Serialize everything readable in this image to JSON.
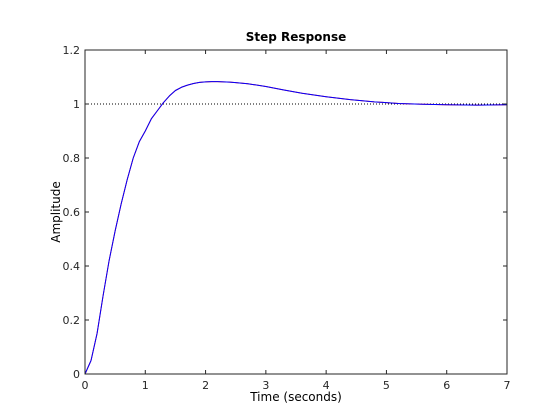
{
  "chart_data": {
    "type": "line",
    "title": "Step Response",
    "xlabel": "Time (seconds)",
    "ylabel": "Amplitude",
    "xlim": [
      0,
      7
    ],
    "ylim": [
      0,
      1.2
    ],
    "x_ticks": [
      0,
      1,
      2,
      3,
      4,
      5,
      6,
      7
    ],
    "x_tick_labels": [
      "0",
      "1",
      "2",
      "3",
      "4",
      "5",
      "6",
      "7"
    ],
    "y_ticks": [
      0,
      0.2,
      0.4,
      0.6,
      0.8,
      1,
      1.2
    ],
    "y_tick_labels": [
      "0",
      "0.2",
      "0.4",
      "0.6",
      "0.8",
      "1",
      "1.2"
    ],
    "grid": false,
    "legend": "none",
    "reference_line": {
      "y": 1,
      "style": "dotted",
      "color": "#000000"
    },
    "series": [
      {
        "color": "#ff0000",
        "x": [
          0,
          0.1,
          0.2,
          0.3,
          0.4,
          0.5,
          0.6,
          0.7,
          0.8,
          0.9,
          1.0,
          1.1,
          1.2,
          1.3,
          1.4,
          1.5,
          1.6,
          1.7,
          1.8,
          1.9,
          2.0,
          2.1,
          2.2,
          2.3,
          2.4,
          2.5,
          2.7,
          3.0,
          3.3,
          3.6,
          4.0,
          4.4,
          4.8,
          5.2,
          5.6,
          6.0,
          6.5,
          7.0
        ],
        "y": [
          0,
          0.05,
          0.15,
          0.29,
          0.42,
          0.53,
          0.63,
          0.72,
          0.8,
          0.86,
          0.9,
          0.945,
          0.975,
          1.005,
          1.03,
          1.05,
          1.062,
          1.07,
          1.076,
          1.08,
          1.082,
          1.083,
          1.083,
          1.082,
          1.081,
          1.079,
          1.075,
          1.065,
          1.052,
          1.04,
          1.027,
          1.016,
          1.008,
          1.002,
          0.999,
          0.997,
          0.996,
          0.997
        ]
      },
      {
        "color": "#0000ff",
        "x": [
          0,
          0.1,
          0.2,
          0.3,
          0.4,
          0.5,
          0.6,
          0.7,
          0.8,
          0.9,
          1.0,
          1.1,
          1.2,
          1.3,
          1.4,
          1.5,
          1.6,
          1.7,
          1.8,
          1.9,
          2.0,
          2.1,
          2.2,
          2.3,
          2.4,
          2.5,
          2.7,
          3.0,
          3.3,
          3.6,
          4.0,
          4.4,
          4.8,
          5.2,
          5.6,
          6.0,
          6.5,
          7.0
        ],
        "y": [
          0,
          0.05,
          0.15,
          0.29,
          0.42,
          0.53,
          0.63,
          0.72,
          0.8,
          0.86,
          0.9,
          0.945,
          0.975,
          1.005,
          1.03,
          1.05,
          1.062,
          1.07,
          1.076,
          1.08,
          1.082,
          1.083,
          1.083,
          1.082,
          1.081,
          1.079,
          1.075,
          1.065,
          1.052,
          1.04,
          1.027,
          1.016,
          1.008,
          1.002,
          0.999,
          0.997,
          0.996,
          0.997
        ]
      }
    ]
  }
}
